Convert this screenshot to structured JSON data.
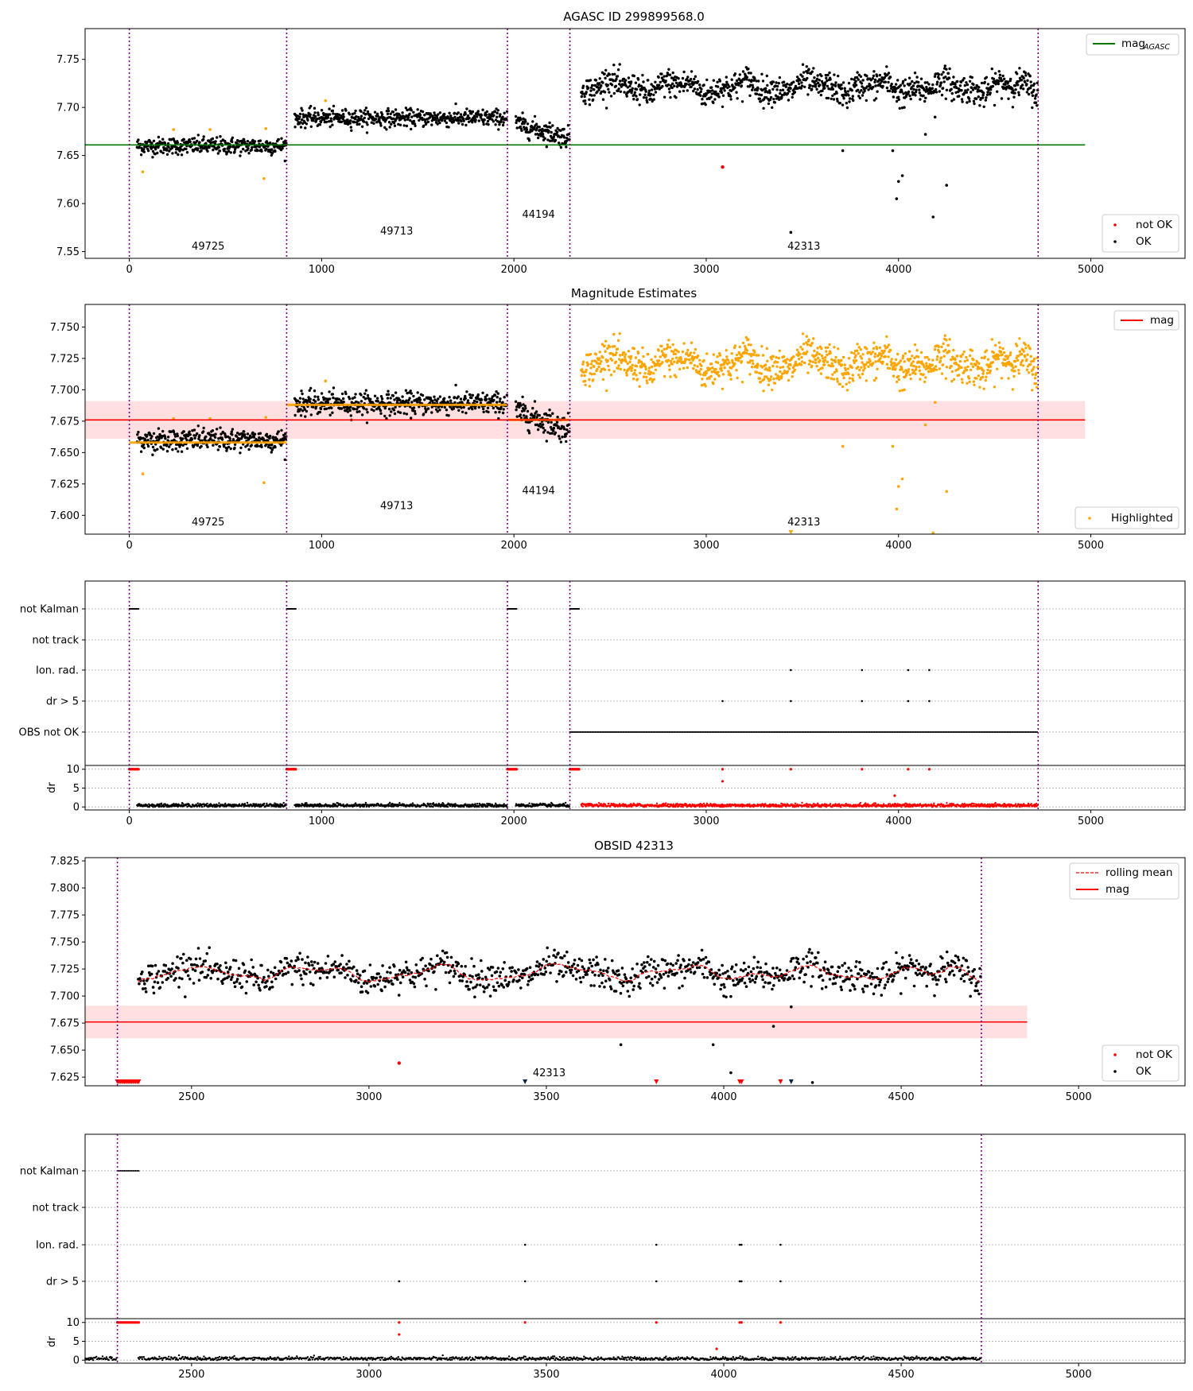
{
  "chart_data": [
    {
      "type": "scatter",
      "title": "AGASC ID 299899568.0",
      "xlabel": "",
      "ylabel": "",
      "xlim": [
        -230,
        5490
      ],
      "ylim": [
        7.543,
        7.782
      ],
      "xticks": [
        "0",
        "1000",
        "2000",
        "3000",
        "4000",
        "5000"
      ],
      "yticks": [
        "7.55",
        "7.60",
        "7.65",
        "7.70",
        "7.75"
      ],
      "legend_top": {
        "position": "top-right",
        "entries": [
          {
            "label": "mag",
            "sub": "AGASC",
            "color": "#007700",
            "kind": "line"
          }
        ]
      },
      "legend_bottom": {
        "position": "bottom-right",
        "entries": [
          {
            "label": "not OK",
            "color": "#ff0000"
          },
          {
            "label": "OK",
            "color": "#000000"
          }
        ]
      },
      "hline": {
        "label": "mag_AGASC",
        "y": 7.661,
        "x_range": [
          -230,
          4970
        ],
        "color": "#007700"
      },
      "obsid_boundaries": [
        0,
        818,
        1966,
        2291,
        4726
      ],
      "annotations": [
        {
          "text": "49725",
          "x": 410,
          "y": 7.552
        },
        {
          "text": "49713",
          "x": 1390,
          "y": 7.568
        },
        {
          "text": "44194",
          "x": 2128,
          "y": 7.585
        },
        {
          "text": "42313",
          "x": 3508,
          "y": 7.552
        }
      ],
      "segments": [
        {
          "obsid": "49725",
          "x": [
            40,
            818
          ],
          "mean": 7.66,
          "sd": 0.005
        },
        {
          "obsid": "49713",
          "x": [
            860,
            1966
          ],
          "mean": 7.689,
          "sd": 0.005
        },
        {
          "obsid": "44194",
          "x": [
            2010,
            2291
          ],
          "mean": 7.676,
          "sd": 0.006
        },
        {
          "obsid": "42313",
          "x": [
            2350,
            4726
          ],
          "mean": 7.721,
          "sd": 0.008
        }
      ],
      "outliers_ok": [
        [
          3710,
          7.655
        ],
        [
          3970,
          7.655
        ],
        [
          3990,
          7.605
        ],
        [
          4000,
          7.623
        ],
        [
          4020,
          7.629
        ],
        [
          4140,
          7.672
        ],
        [
          4190,
          7.69
        ],
        [
          4180,
          7.586
        ],
        [
          4250,
          7.619
        ],
        [
          3440,
          7.57
        ],
        [
          4030,
          7.7
        ]
      ],
      "outliers_flagged": [
        [
          70,
          7.633
        ],
        [
          700,
          7.626
        ],
        [
          230,
          7.677
        ],
        [
          420,
          7.677
        ],
        [
          710,
          7.678
        ],
        [
          1020,
          7.707
        ]
      ],
      "not_ok_points": [
        [
          3085,
          7.638
        ]
      ]
    },
    {
      "type": "scatter",
      "title": "Magnitude Estimates",
      "xlim": [
        -230,
        5490
      ],
      "ylim": [
        7.585,
        7.768
      ],
      "xticks": [
        "0",
        "1000",
        "2000",
        "3000",
        "4000",
        "5000"
      ],
      "yticks": [
        "7.600",
        "7.625",
        "7.650",
        "7.675",
        "7.700",
        "7.725",
        "7.750"
      ],
      "legend_top": {
        "position": "top-right",
        "entries": [
          {
            "label": "mag",
            "color": "#ff0000",
            "kind": "line"
          }
        ]
      },
      "legend_bottom": {
        "position": "bottom-right",
        "entries": [
          {
            "label": "Highlighted",
            "color": "#ffa500"
          }
        ]
      },
      "mag": 7.676,
      "mag_band": [
        7.661,
        7.691
      ],
      "x_range": [
        -230,
        4970
      ],
      "obsid_boundaries": [
        0,
        818,
        1966,
        2291,
        4726
      ],
      "segment_means": [
        {
          "x": [
            0,
            818
          ],
          "y": 7.658
        },
        {
          "x": [
            818,
            1966
          ],
          "y": 7.688
        },
        {
          "x": [
            1966,
            2291
          ],
          "y": 7.676
        }
      ],
      "annotations": [
        {
          "text": "49725",
          "x": 410,
          "y": 7.592
        },
        {
          "text": "49713",
          "x": 1390,
          "y": 7.605
        },
        {
          "text": "44194",
          "x": 2128,
          "y": 7.617
        },
        {
          "text": "42313",
          "x": 3508,
          "y": 7.592
        }
      ]
    },
    {
      "type": "scatter",
      "title": "",
      "xlim": [
        -230,
        5490
      ],
      "xticks": [
        "0",
        "1000",
        "2000",
        "3000",
        "4000",
        "5000"
      ],
      "flag_labels": [
        "not Kalman",
        "not track",
        "Ion. rad.",
        "dr > 5",
        "OBS not OK"
      ],
      "dr_yticks": [
        "0",
        "5",
        "10"
      ],
      "dr_ylabel": "dr",
      "not_kalman_runs": [
        [
          0,
          50
        ],
        [
          818,
          868
        ],
        [
          1966,
          2016
        ],
        [
          2291,
          2341
        ]
      ],
      "ion_rad_x": [
        3440,
        3810,
        4050,
        4160
      ],
      "dr5_x": [
        3085,
        3440,
        3810,
        4050,
        4160
      ],
      "obs_not_ok_range": [
        2291,
        4726
      ],
      "dr_spikes": [
        [
          3085,
          6.8
        ],
        [
          3980,
          3.0
        ]
      ]
    },
    {
      "type": "scatter",
      "title": "OBSID 42313",
      "xlim": [
        2200,
        5300
      ],
      "ylim": [
        7.617,
        7.828
      ],
      "xticks": [
        "2500",
        "3000",
        "3500",
        "4000",
        "4500",
        "5000"
      ],
      "yticks": [
        "7.625",
        "7.650",
        "7.675",
        "7.700",
        "7.725",
        "7.750",
        "7.775",
        "7.800",
        "7.825"
      ],
      "legend_top": {
        "position": "top-right",
        "entries": [
          {
            "label": "rolling mean",
            "color": "#ff0000",
            "kind": "dashed"
          },
          {
            "label": "mag",
            "color": "#ff0000",
            "kind": "line"
          }
        ]
      },
      "legend_bottom": {
        "position": "bottom-right",
        "entries": [
          {
            "label": "not OK",
            "color": "#ff0000"
          },
          {
            "label": "OK",
            "color": "#000000"
          }
        ]
      },
      "mag": 7.676,
      "mag_band": [
        7.661,
        7.691
      ],
      "annotation": {
        "text": "42313",
        "x": 3508,
        "y": 7.626
      },
      "outliers_ok": [
        [
          3710,
          7.655
        ],
        [
          3970,
          7.655
        ],
        [
          4020,
          7.629
        ],
        [
          4140,
          7.672
        ],
        [
          4190,
          7.69
        ],
        [
          4000,
          7.7
        ],
        [
          4250,
          7.62
        ]
      ],
      "not_ok_points": [
        [
          3085,
          7.638
        ]
      ],
      "bottom_markers": [
        3440,
        3810,
        4045,
        4050,
        4160,
        4190
      ]
    },
    {
      "type": "scatter",
      "title": "",
      "xlim": [
        2200,
        5300
      ],
      "xticks": [
        "2500",
        "3000",
        "3500",
        "4000",
        "4500",
        "5000"
      ],
      "flag_labels": [
        "not Kalman",
        "not track",
        "Ion. rad.",
        "dr > 5"
      ],
      "dr_yticks": [
        "0",
        "5",
        "10"
      ],
      "dr_ylabel": "dr",
      "not_kalman_runs": [
        [
          2291,
          2352
        ]
      ],
      "ion_rad_x": [
        3440,
        3810,
        4045,
        4050,
        4160
      ],
      "dr5_x": [
        3085,
        3440,
        3810,
        4045,
        4050,
        4160
      ],
      "dr_spikes": [
        [
          3085,
          6.8
        ],
        [
          3980,
          3.0
        ]
      ]
    }
  ]
}
